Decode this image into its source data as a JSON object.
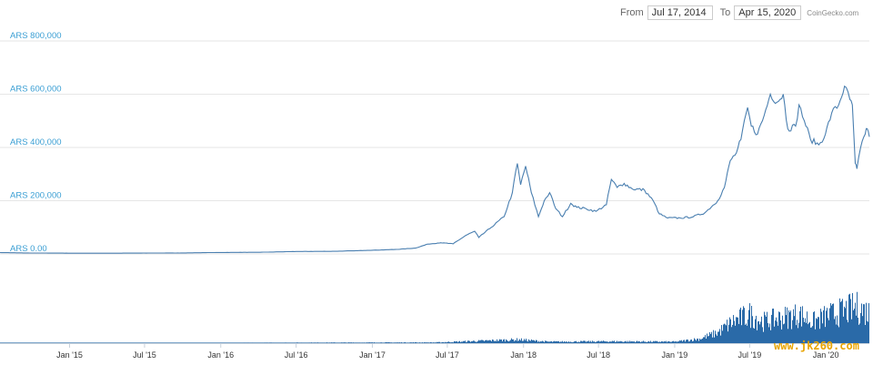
{
  "range": {
    "from_label": "From",
    "from_value": "Jul 17, 2014",
    "to_label": "To",
    "to_value": "Apr 15, 2020"
  },
  "credit": "CoinGecko.com",
  "watermark": "www.jk260.com",
  "chart_data": {
    "type": "area",
    "title": "",
    "xlabel": "",
    "ylabel": "",
    "x_range": [
      "2014-07-17",
      "2020-04-15"
    ],
    "ylim": [
      0,
      800000
    ],
    "y_ticks": [
      0,
      200000,
      400000,
      600000,
      800000
    ],
    "y_tick_labels": [
      "ARS 0.00",
      "ARS 200,000",
      "ARS 400,000",
      "ARS 600,000",
      "ARS 800,000"
    ],
    "x_ticks": [
      "2015-01-01",
      "2015-07-01",
      "2016-01-01",
      "2016-07-01",
      "2017-01-01",
      "2017-07-01",
      "2018-01-01",
      "2018-07-01",
      "2019-01-01",
      "2019-07-01",
      "2020-01-01"
    ],
    "x_tick_labels": [
      "Jan '15",
      "Jul '15",
      "Jan '16",
      "Jul '16",
      "Jan '17",
      "Jul '17",
      "Jan '18",
      "Jul '18",
      "Jan '19",
      "Jul '19",
      "Jan '20"
    ],
    "grid": true,
    "series": [
      {
        "color": "#4a7fb0",
        "points": [
          [
            "2014-07-17",
            5000
          ],
          [
            "2014-10-01",
            3500
          ],
          [
            "2015-01-01",
            2800
          ],
          [
            "2015-04-01",
            2600
          ],
          [
            "2015-07-01",
            3300
          ],
          [
            "2015-10-01",
            3700
          ],
          [
            "2016-01-01",
            5600
          ],
          [
            "2016-04-01",
            6200
          ],
          [
            "2016-07-01",
            9200
          ],
          [
            "2016-10-01",
            9800
          ],
          [
            "2017-01-01",
            14000
          ],
          [
            "2017-03-01",
            17000
          ],
          [
            "2017-04-15",
            22000
          ],
          [
            "2017-05-15",
            37000
          ],
          [
            "2017-06-15",
            42000
          ],
          [
            "2017-07-15",
            38000
          ],
          [
            "2017-08-15",
            70000
          ],
          [
            "2017-09-05",
            85000
          ],
          [
            "2017-09-15",
            62000
          ],
          [
            "2017-10-15",
            100000
          ],
          [
            "2017-11-15",
            140000
          ],
          [
            "2017-12-05",
            230000
          ],
          [
            "2017-12-17",
            340000
          ],
          [
            "2017-12-25",
            260000
          ],
          [
            "2018-01-06",
            330000
          ],
          [
            "2018-01-20",
            230000
          ],
          [
            "2018-02-06",
            140000
          ],
          [
            "2018-02-20",
            200000
          ],
          [
            "2018-03-05",
            230000
          ],
          [
            "2018-03-20",
            170000
          ],
          [
            "2018-04-05",
            140000
          ],
          [
            "2018-04-25",
            190000
          ],
          [
            "2018-05-10",
            175000
          ],
          [
            "2018-06-01",
            170000
          ],
          [
            "2018-06-25",
            160000
          ],
          [
            "2018-07-20",
            185000
          ],
          [
            "2018-08-01",
            280000
          ],
          [
            "2018-08-15",
            250000
          ],
          [
            "2018-09-01",
            265000
          ],
          [
            "2018-09-20",
            245000
          ],
          [
            "2018-10-20",
            240000
          ],
          [
            "2018-11-10",
            200000
          ],
          [
            "2018-11-25",
            150000
          ],
          [
            "2018-12-15",
            135000
          ],
          [
            "2019-01-15",
            135000
          ],
          [
            "2019-02-15",
            140000
          ],
          [
            "2019-03-15",
            155000
          ],
          [
            "2019-04-15",
            200000
          ],
          [
            "2019-05-01",
            250000
          ],
          [
            "2019-05-15",
            350000
          ],
          [
            "2019-05-30",
            380000
          ],
          [
            "2019-06-10",
            430000
          ],
          [
            "2019-06-26",
            550000
          ],
          [
            "2019-07-05",
            480000
          ],
          [
            "2019-07-20",
            450000
          ],
          [
            "2019-08-05",
            520000
          ],
          [
            "2019-08-20",
            600000
          ],
          [
            "2019-09-05",
            570000
          ],
          [
            "2019-09-20",
            600000
          ],
          [
            "2019-10-01",
            470000
          ],
          [
            "2019-10-20",
            480000
          ],
          [
            "2019-10-28",
            560000
          ],
          [
            "2019-11-10",
            500000
          ],
          [
            "2019-11-25",
            430000
          ],
          [
            "2019-12-15",
            410000
          ],
          [
            "2019-12-31",
            450000
          ],
          [
            "2020-01-15",
            530000
          ],
          [
            "2020-02-01",
            560000
          ],
          [
            "2020-02-15",
            630000
          ],
          [
            "2020-02-28",
            580000
          ],
          [
            "2020-03-05",
            560000
          ],
          [
            "2020-03-12",
            340000
          ],
          [
            "2020-03-16",
            320000
          ],
          [
            "2020-03-25",
            400000
          ],
          [
            "2020-04-05",
            450000
          ],
          [
            "2020-04-10",
            470000
          ],
          [
            "2020-04-15",
            440000
          ]
        ]
      }
    ],
    "volume_bars": {
      "color": "#2a6aa8",
      "relative_max": 1.0,
      "levels": [
        [
          "2014-07-17",
          0.01
        ],
        [
          "2016-01-01",
          0.01
        ],
        [
          "2017-06-01",
          0.02
        ],
        [
          "2017-12-20",
          0.1
        ],
        [
          "2018-03-01",
          0.04
        ],
        [
          "2018-08-01",
          0.05
        ],
        [
          "2019-01-01",
          0.04
        ],
        [
          "2019-03-01",
          0.12
        ],
        [
          "2019-04-15",
          0.3
        ],
        [
          "2019-05-20",
          0.6
        ],
        [
          "2019-07-01",
          0.8
        ],
        [
          "2019-08-01",
          0.6
        ],
        [
          "2019-10-28",
          0.8
        ],
        [
          "2019-12-01",
          0.6
        ],
        [
          "2020-01-01",
          0.75
        ],
        [
          "2020-02-15",
          0.9
        ],
        [
          "2020-03-12",
          1.0
        ],
        [
          "2020-04-15",
          0.85
        ]
      ]
    }
  }
}
